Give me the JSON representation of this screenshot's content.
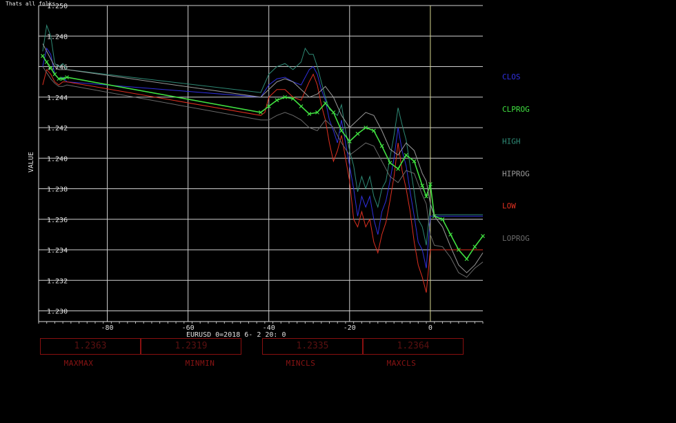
{
  "corner_text": "Thats all folks",
  "chart_data": {
    "type": "line",
    "ylabel": "VALUE",
    "xlabel": "EURUSD   0=2018  6- 2 20: 0",
    "xlim": [
      -97,
      13
    ],
    "ylim": [
      1.2293,
      1.25
    ],
    "x_ticks": [
      -80,
      -60,
      -40,
      -20,
      0
    ],
    "y_ticks": [
      1.23,
      1.232,
      1.234,
      1.236,
      1.238,
      1.24,
      1.242,
      1.244,
      1.246,
      1.248,
      1.25
    ],
    "x_tick_labels": [
      "-80",
      "-60",
      "-40",
      "-20",
      "0"
    ],
    "y_tick_labels": [
      "1.230",
      "1.232",
      "1.234",
      "1.236",
      "1.238",
      "1.240",
      "1.242",
      "1.244",
      "1.246",
      "1.248",
      "1.250"
    ],
    "grid": true,
    "legend_placement": "right",
    "series": [
      {
        "name": "CLOS",
        "color": "#3030e0",
        "points": [
          [
            -96,
            1.246
          ],
          [
            -95,
            1.2472
          ],
          [
            -94,
            1.2468
          ],
          [
            -93,
            1.2455
          ],
          [
            -92,
            1.2452
          ],
          [
            -91,
            1.2453
          ],
          [
            -90,
            1.245
          ],
          [
            -42,
            1.244
          ],
          [
            -40,
            1.2448
          ],
          [
            -38,
            1.2452
          ],
          [
            -36,
            1.2453
          ],
          [
            -34,
            1.245
          ],
          [
            -32,
            1.2448
          ],
          [
            -30,
            1.2458
          ],
          [
            -29,
            1.246
          ],
          [
            -28,
            1.2455
          ],
          [
            -27,
            1.2445
          ],
          [
            -26,
            1.2438
          ],
          [
            -25,
            1.2425
          ],
          [
            -24,
            1.2418
          ],
          [
            -23,
            1.241
          ],
          [
            -22,
            1.2425
          ],
          [
            -21,
            1.241
          ],
          [
            -20,
            1.2395
          ],
          [
            -19,
            1.238
          ],
          [
            -18,
            1.2362
          ],
          [
            -17,
            1.2375
          ],
          [
            -16,
            1.2368
          ],
          [
            -15,
            1.2375
          ],
          [
            -14,
            1.236
          ],
          [
            -13,
            1.235
          ],
          [
            -12,
            1.2365
          ],
          [
            -11,
            1.2372
          ],
          [
            -10,
            1.2385
          ],
          [
            -9,
            1.24
          ],
          [
            -8,
            1.242
          ],
          [
            -7,
            1.2405
          ],
          [
            -6,
            1.2395
          ],
          [
            -5,
            1.2378
          ],
          [
            -4,
            1.2362
          ],
          [
            -3,
            1.2345
          ],
          [
            -2,
            1.234
          ],
          [
            -1,
            1.2328
          ],
          [
            0,
            1.2362
          ],
          [
            1,
            1.2362
          ],
          [
            13,
            1.2362
          ]
        ]
      },
      {
        "name": "HIGH",
        "color": "#2e8a76",
        "points": [
          [
            -96,
            1.247
          ],
          [
            -95,
            1.2487
          ],
          [
            -94,
            1.248
          ],
          [
            -93,
            1.2462
          ],
          [
            -92,
            1.246
          ],
          [
            -91,
            1.2462
          ],
          [
            -90,
            1.2458
          ],
          [
            -42,
            1.2443
          ],
          [
            -40,
            1.2455
          ],
          [
            -38,
            1.246
          ],
          [
            -36,
            1.2462
          ],
          [
            -34,
            1.2458
          ],
          [
            -32,
            1.2463
          ],
          [
            -31,
            1.2472
          ],
          [
            -30,
            1.2468
          ],
          [
            -29,
            1.2468
          ],
          [
            -28,
            1.246
          ],
          [
            -27,
            1.245
          ],
          [
            -26,
            1.244
          ],
          [
            -25,
            1.2432
          ],
          [
            -24,
            1.243
          ],
          [
            -23,
            1.2428
          ],
          [
            -22,
            1.2435
          ],
          [
            -21,
            1.2418
          ],
          [
            -20,
            1.2405
          ],
          [
            -19,
            1.2395
          ],
          [
            -18,
            1.2378
          ],
          [
            -17,
            1.2388
          ],
          [
            -16,
            1.238
          ],
          [
            -15,
            1.2388
          ],
          [
            -14,
            1.2375
          ],
          [
            -13,
            1.2368
          ],
          [
            -12,
            1.238
          ],
          [
            -11,
            1.2385
          ],
          [
            -10,
            1.24
          ],
          [
            -9,
            1.2415
          ],
          [
            -8,
            1.2433
          ],
          [
            -7,
            1.2422
          ],
          [
            -6,
            1.2412
          ],
          [
            -5,
            1.2395
          ],
          [
            -4,
            1.2378
          ],
          [
            -3,
            1.236
          ],
          [
            -2,
            1.2355
          ],
          [
            -1,
            1.2343
          ],
          [
            0,
            1.237
          ],
          [
            1,
            1.2363
          ],
          [
            13,
            1.2363
          ]
        ]
      },
      {
        "name": "LOW",
        "color": "#e03020",
        "points": [
          [
            -96,
            1.2448
          ],
          [
            -95,
            1.2458
          ],
          [
            -94,
            1.2455
          ],
          [
            -93,
            1.245
          ],
          [
            -92,
            1.2448
          ],
          [
            -91,
            1.245
          ],
          [
            -90,
            1.245
          ],
          [
            -42,
            1.2428
          ],
          [
            -41,
            1.243
          ],
          [
            -40,
            1.244
          ],
          [
            -38,
            1.2445
          ],
          [
            -36,
            1.2445
          ],
          [
            -34,
            1.244
          ],
          [
            -32,
            1.2438
          ],
          [
            -30,
            1.245
          ],
          [
            -29,
            1.2455
          ],
          [
            -28,
            1.2448
          ],
          [
            -27,
            1.2435
          ],
          [
            -26,
            1.2425
          ],
          [
            -25,
            1.241
          ],
          [
            -24,
            1.2398
          ],
          [
            -23,
            1.2405
          ],
          [
            -22,
            1.2415
          ],
          [
            -21,
            1.24
          ],
          [
            -20,
            1.2385
          ],
          [
            -19,
            1.236
          ],
          [
            -18,
            1.2355
          ],
          [
            -17,
            1.2365
          ],
          [
            -16,
            1.2355
          ],
          [
            -15,
            1.236
          ],
          [
            -14,
            1.2345
          ],
          [
            -13,
            1.2338
          ],
          [
            -12,
            1.235
          ],
          [
            -11,
            1.2358
          ],
          [
            -10,
            1.2372
          ],
          [
            -9,
            1.2388
          ],
          [
            -8,
            1.241
          ],
          [
            -7,
            1.2392
          ],
          [
            -6,
            1.238
          ],
          [
            -5,
            1.2365
          ],
          [
            -4,
            1.2345
          ],
          [
            -3,
            1.233
          ],
          [
            -2,
            1.2322
          ],
          [
            -1,
            1.2312
          ],
          [
            0,
            1.234
          ],
          [
            1,
            1.234
          ],
          [
            13,
            1.234
          ]
        ]
      },
      {
        "name": "CLPROG",
        "color": "#40e040",
        "marker": "x",
        "points": [
          [
            -96,
            1.2467
          ],
          [
            -95,
            1.2463
          ],
          [
            -94,
            1.2459
          ],
          [
            -93,
            1.2455
          ],
          [
            -92,
            1.2452
          ],
          [
            -91,
            1.2452
          ],
          [
            -90,
            1.2453
          ],
          [
            -42,
            1.243
          ],
          [
            -40,
            1.2434
          ],
          [
            -38,
            1.2438
          ],
          [
            -36,
            1.244
          ],
          [
            -34,
            1.2439
          ],
          [
            -32,
            1.2434
          ],
          [
            -30,
            1.2429
          ],
          [
            -28,
            1.243
          ],
          [
            -26,
            1.2436
          ],
          [
            -24,
            1.243
          ],
          [
            -22,
            1.2418
          ],
          [
            -20,
            1.2411
          ],
          [
            -18,
            1.2416
          ],
          [
            -16,
            1.242
          ],
          [
            -14,
            1.2418
          ],
          [
            -12,
            1.2408
          ],
          [
            -10,
            1.2397
          ],
          [
            -8,
            1.2393
          ],
          [
            -6,
            1.2402
          ],
          [
            -4,
            1.2398
          ],
          [
            -2,
            1.2382
          ],
          [
            -1,
            1.2375
          ],
          [
            0,
            1.2383
          ],
          [
            1,
            1.2362
          ],
          [
            3,
            1.236
          ],
          [
            5,
            1.235
          ],
          [
            7,
            1.234
          ],
          [
            9,
            1.2334
          ],
          [
            11,
            1.2342
          ],
          [
            13,
            1.2349
          ]
        ]
      },
      {
        "name": "HIPROG",
        "color": "#9a9a9a",
        "points": [
          [
            -96,
            1.2475
          ],
          [
            -95,
            1.247
          ],
          [
            -94,
            1.2465
          ],
          [
            -93,
            1.246
          ],
          [
            -92,
            1.2458
          ],
          [
            -91,
            1.2458
          ],
          [
            -90,
            1.2458
          ],
          [
            -42,
            1.244
          ],
          [
            -40,
            1.2445
          ],
          [
            -38,
            1.245
          ],
          [
            -36,
            1.2452
          ],
          [
            -34,
            1.245
          ],
          [
            -32,
            1.2445
          ],
          [
            -30,
            1.244
          ],
          [
            -28,
            1.2442
          ],
          [
            -26,
            1.2447
          ],
          [
            -24,
            1.244
          ],
          [
            -22,
            1.2428
          ],
          [
            -20,
            1.242
          ],
          [
            -18,
            1.2425
          ],
          [
            -16,
            1.243
          ],
          [
            -14,
            1.2428
          ],
          [
            -12,
            1.2418
          ],
          [
            -10,
            1.2406
          ],
          [
            -8,
            1.2402
          ],
          [
            -6,
            1.241
          ],
          [
            -4,
            1.2405
          ],
          [
            -2,
            1.239
          ],
          [
            -1,
            1.2385
          ],
          [
            0,
            1.237
          ],
          [
            1,
            1.2362
          ],
          [
            3,
            1.2355
          ],
          [
            5,
            1.2342
          ],
          [
            7,
            1.233
          ],
          [
            9,
            1.2325
          ],
          [
            11,
            1.233
          ],
          [
            13,
            1.2338
          ]
        ]
      },
      {
        "name": "LOPROG",
        "color": "#6a6a6a",
        "points": [
          [
            -96,
            1.246
          ],
          [
            -95,
            1.2456
          ],
          [
            -94,
            1.2452
          ],
          [
            -93,
            1.2449
          ],
          [
            -92,
            1.2447
          ],
          [
            -91,
            1.2447
          ],
          [
            -90,
            1.2448
          ],
          [
            -42,
            1.2425
          ],
          [
            -40,
            1.2425
          ],
          [
            -38,
            1.2428
          ],
          [
            -36,
            1.243
          ],
          [
            -34,
            1.2428
          ],
          [
            -32,
            1.2425
          ],
          [
            -30,
            1.242
          ],
          [
            -28,
            1.2418
          ],
          [
            -26,
            1.2425
          ],
          [
            -24,
            1.242
          ],
          [
            -22,
            1.241
          ],
          [
            -20,
            1.2402
          ],
          [
            -18,
            1.2406
          ],
          [
            -16,
            1.241
          ],
          [
            -14,
            1.2408
          ],
          [
            -12,
            1.2398
          ],
          [
            -10,
            1.2388
          ],
          [
            -8,
            1.2384
          ],
          [
            -6,
            1.2392
          ],
          [
            -4,
            1.239
          ],
          [
            -2,
            1.2376
          ],
          [
            -1,
            1.237
          ],
          [
            0,
            1.235
          ],
          [
            1,
            1.2343
          ],
          [
            3,
            1.2342
          ],
          [
            5,
            1.2335
          ],
          [
            7,
            1.2325
          ],
          [
            9,
            1.2322
          ],
          [
            11,
            1.2328
          ],
          [
            13,
            1.2332
          ]
        ]
      }
    ],
    "stats": [
      {
        "label": "MAXMAX",
        "value": "1.2363"
      },
      {
        "label": "MINMIN",
        "value": "1.2319"
      },
      {
        "label": "MINCLS",
        "value": "1.2335"
      },
      {
        "label": "MAXCLS",
        "value": "1.2364"
      }
    ]
  }
}
